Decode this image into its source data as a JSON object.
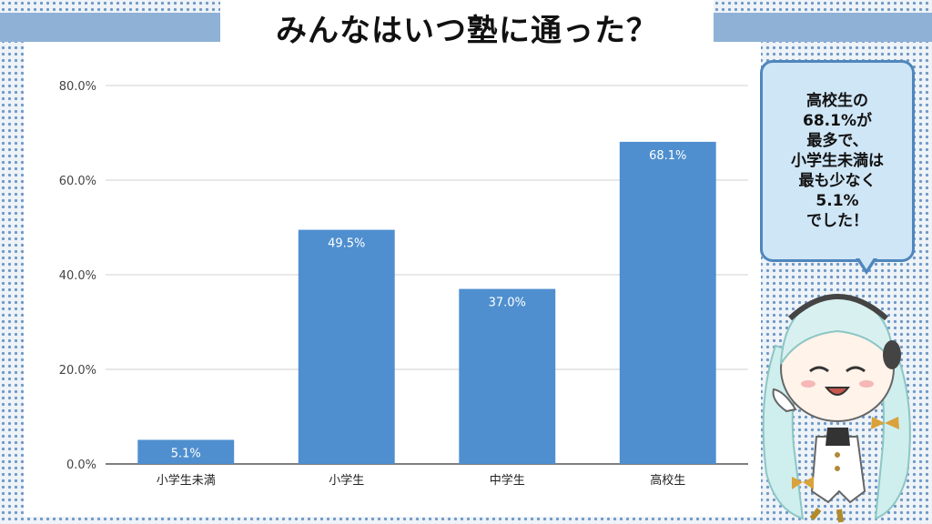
{
  "title": "みんなはいつ塾に通った？",
  "callout": "高校生の\n68.1%が\n最多で、\n小学生未満は\n最も少なく\n5.1%\nでした！",
  "colors": {
    "bar": "#4f8fcf",
    "accent": "#8fb1d6",
    "bubble_fill": "#cfe6f6",
    "bubble_border": "#4f86bd"
  },
  "chart_data": {
    "type": "bar",
    "categories": [
      "小学生未満",
      "小学生",
      "中学生",
      "高校生"
    ],
    "values": [
      5.1,
      49.5,
      37.0,
      68.1
    ],
    "data_labels": [
      "5.1%",
      "49.5%",
      "37.0%",
      "68.1%"
    ],
    "y_ticks": [
      "0.0%",
      "20.0%",
      "40.0%",
      "60.0%",
      "80.0%"
    ],
    "y_tick_values": [
      0,
      20,
      40,
      60,
      80
    ],
    "ylim": [
      0,
      80
    ],
    "grid": true,
    "legend": "none"
  }
}
